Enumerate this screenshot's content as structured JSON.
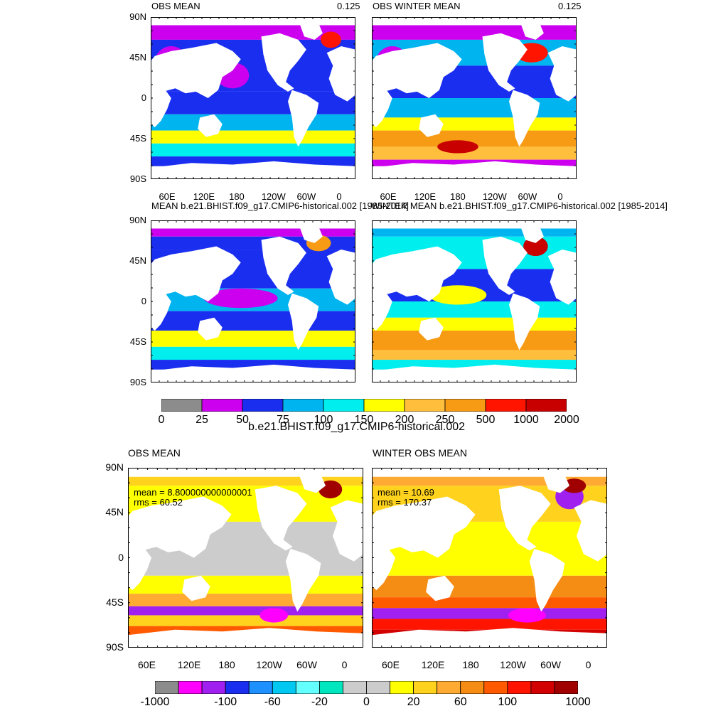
{
  "top_section": {
    "panels": [
      {
        "id": "p1",
        "title": "OBS MEAN",
        "right_label": "0.125",
        "y_ticks": [
          "90N",
          "45N",
          "0",
          "45S",
          "90S"
        ],
        "x_ticks": [
          "60E",
          "120E",
          "180",
          "120W",
          "60W",
          "0"
        ]
      },
      {
        "id": "p2",
        "title": "OBS WINTER MEAN",
        "right_label": "0.125",
        "y_ticks": [],
        "x_ticks": [
          "60E",
          "120E",
          "180",
          "120W",
          "60W",
          "0"
        ]
      },
      {
        "id": "p3",
        "title": "MEAN b.e21.BHIST.f09_g17.CMIP6-historical.002 [1985-2014]",
        "right_label": "",
        "y_ticks": [
          "90N",
          "45N",
          "0",
          "45S",
          "90S"
        ],
        "x_ticks": []
      },
      {
        "id": "p4",
        "title": "WINTER MEAN b.e21.BHIST.f09_g17.CMIP6-historical.002 [1985-2014]",
        "right_label": "",
        "y_ticks": [],
        "x_ticks": []
      }
    ],
    "colorbar": {
      "colors": [
        "#8c8c8c",
        "#cc00ee",
        "#1a2ef0",
        "#00b4f0",
        "#00eeee",
        "#ffff00",
        "#ffbe3c",
        "#f79a14",
        "#ff1400",
        "#c80000"
      ],
      "labels": [
        "0",
        "25",
        "50",
        "75",
        "100",
        "150",
        "200",
        "250",
        "500",
        "1000",
        "2000"
      ]
    },
    "caption": "b.e21.BHIST.f09_g17.CMIP6-historical.002"
  },
  "bottom_section": {
    "panels": [
      {
        "id": "p5",
        "title": "OBS MEAN",
        "stats": [
          "mean = 8.800000000000001",
          "rms = 60.52"
        ],
        "y_ticks": [
          "90N",
          "45N",
          "0",
          "45S",
          "90S"
        ],
        "x_ticks": [
          "60E",
          "120E",
          "180",
          "120W",
          "60W",
          "0"
        ]
      },
      {
        "id": "p6",
        "title": "WINTER OBS MEAN",
        "stats": [
          "mean = 10.69",
          "rms = 170.37"
        ],
        "y_ticks": [],
        "x_ticks": [
          "60E",
          "120E",
          "180",
          "120W",
          "60W",
          "0"
        ]
      }
    ],
    "colorbar": {
      "colors": [
        "#8c8c8c",
        "#ff00ff",
        "#a020f0",
        "#1a2ef0",
        "#1e90ff",
        "#00c8f0",
        "#64ffff",
        "#00e6be",
        "#cccccc",
        "#cccccc",
        "#ffff00",
        "#ffd21e",
        "#ffaa32",
        "#f58c14",
        "#ff5a00",
        "#ff1400",
        "#d20000",
        "#a00000"
      ],
      "labels": [
        "-1000",
        "-100",
        "-60",
        "-20",
        "0",
        "20",
        "60",
        "100",
        "1000"
      ]
    }
  }
}
